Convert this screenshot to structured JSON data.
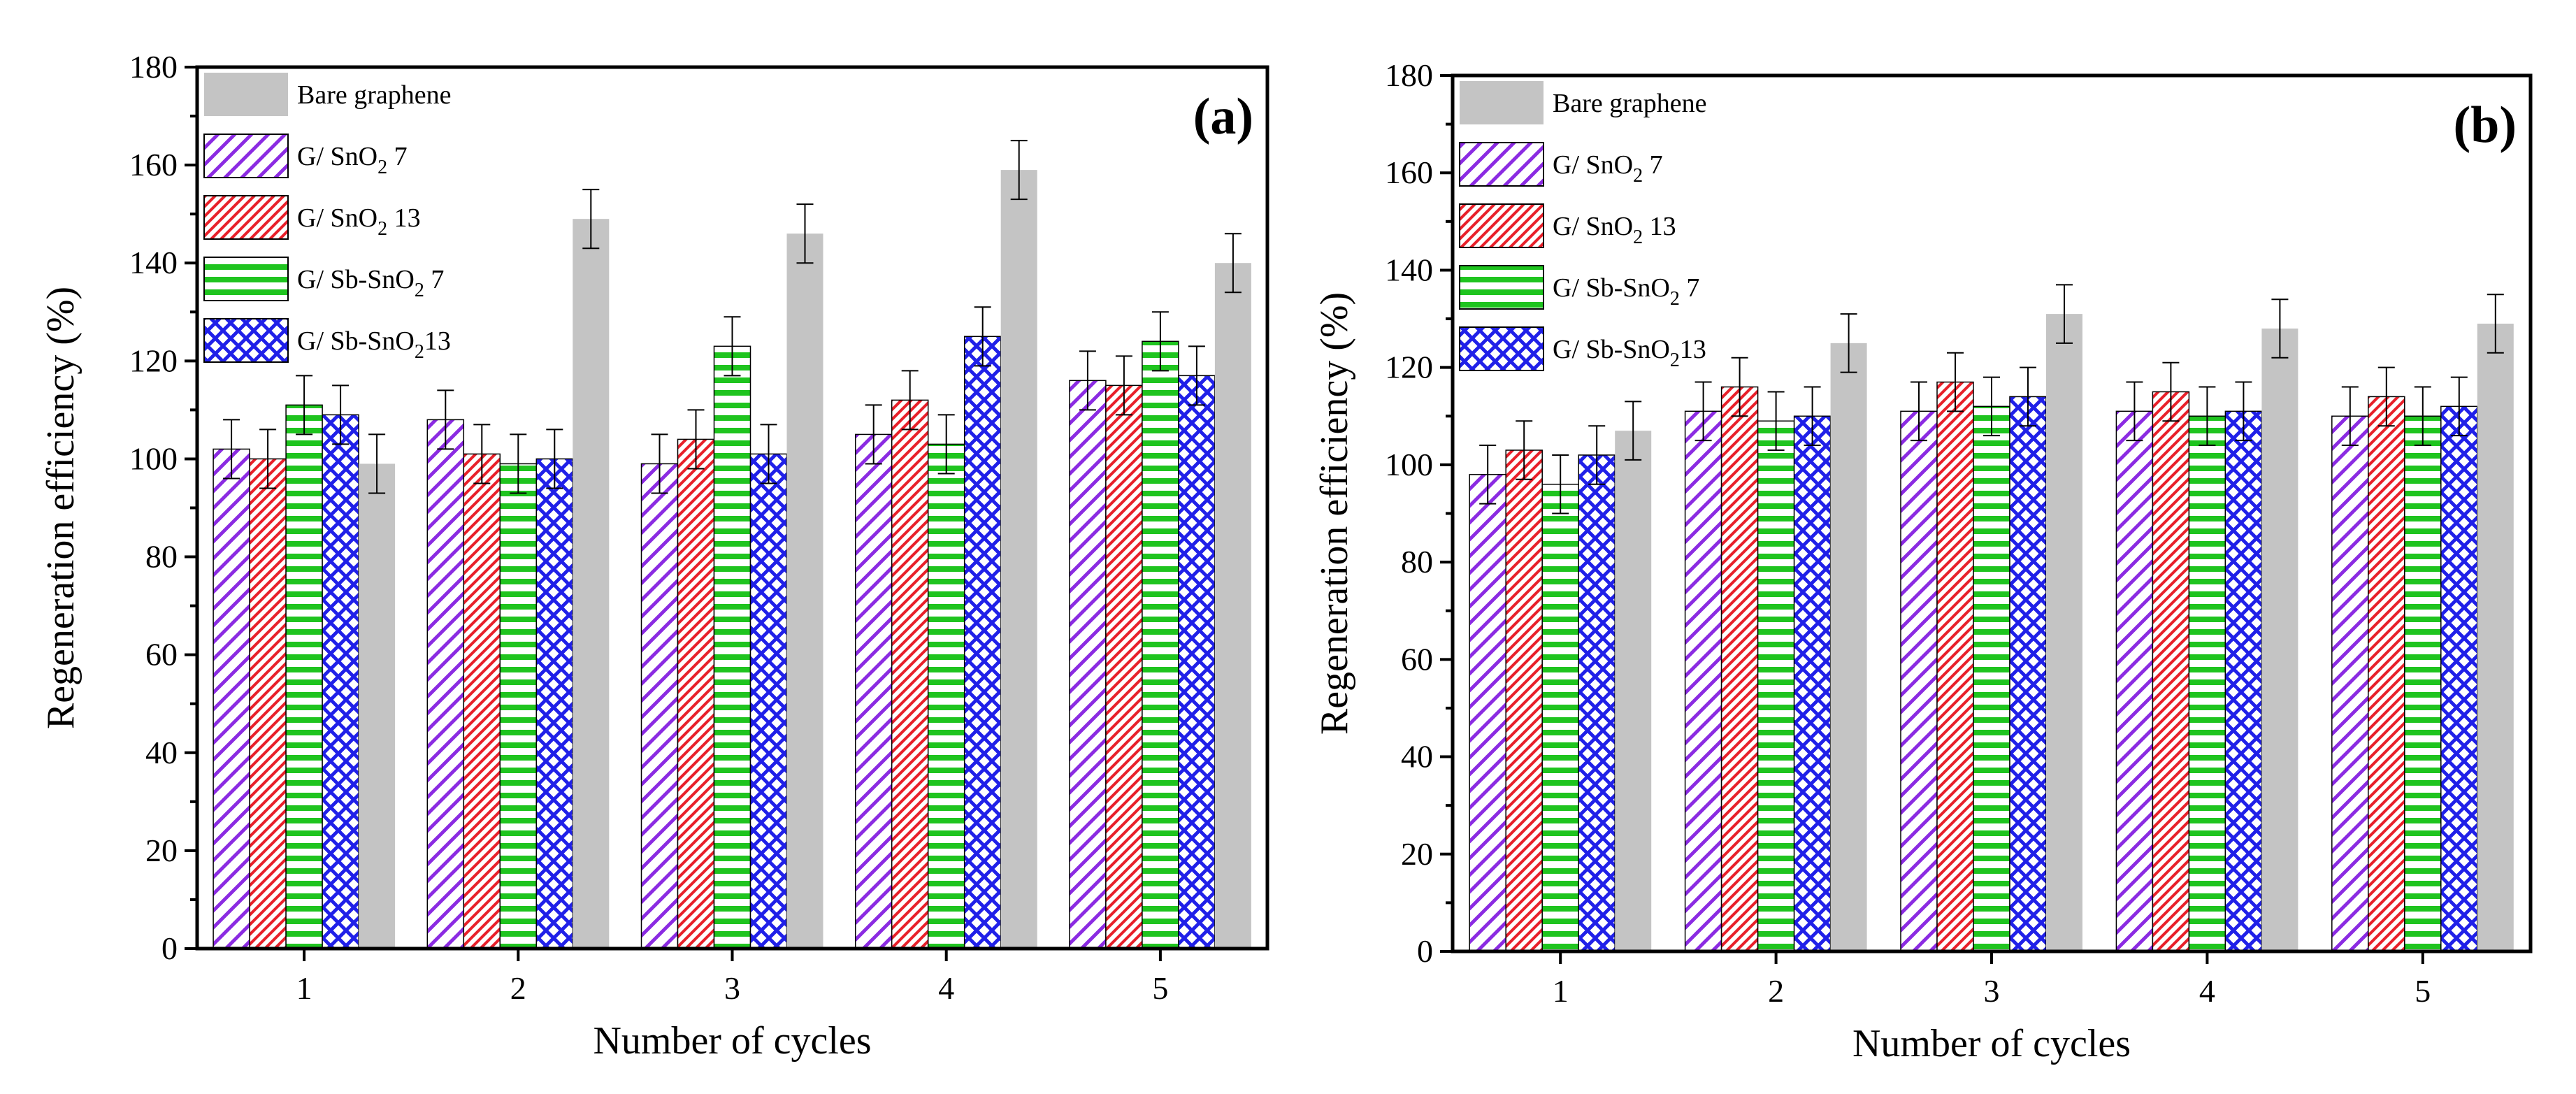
{
  "chart_data": [
    {
      "type": "bar",
      "panel_label": "(a)",
      "xlabel": "Number of cycles",
      "ylabel": "Regeneration efficiency (%)",
      "ylim": [
        0,
        180
      ],
      "yticks": [
        0,
        20,
        40,
        60,
        80,
        100,
        120,
        140,
        160,
        180
      ],
      "categories": [
        "1",
        "2",
        "3",
        "4",
        "5"
      ],
      "legend_position": "top-left",
      "series": [
        {
          "name": "G/ SnO2 7",
          "legend": {
            "pre": "G/ SnO",
            "sub": "2",
            "post": " 7"
          },
          "pattern": "diag-purple",
          "color": "#8B2BE2",
          "values": [
            102,
            108,
            99,
            105,
            116
          ],
          "errors": [
            6,
            6,
            6,
            6,
            6
          ]
        },
        {
          "name": "G/ SnO2 13",
          "legend": {
            "pre": "G/ SnO",
            "sub": "2",
            "post": "  13"
          },
          "pattern": "diag-red",
          "color": "#E8202A",
          "values": [
            100,
            101,
            104,
            112,
            115
          ],
          "errors": [
            6,
            6,
            6,
            6,
            6
          ]
        },
        {
          "name": "G/ Sb-SnO2 7",
          "legend": {
            "pre": "G/ Sb-SnO",
            "sub": "2",
            "post": " 7"
          },
          "pattern": "horiz-green",
          "color": "#1FC41F",
          "values": [
            111,
            99,
            123,
            103,
            124
          ],
          "errors": [
            6,
            6,
            6,
            6,
            6
          ]
        },
        {
          "name": "G/ Sb-SnO2 13",
          "legend": {
            "pre": "G/ Sb-SnO",
            "sub": "2",
            "post": "13"
          },
          "pattern": "cross-blue",
          "color": "#2020E8",
          "values": [
            109,
            100,
            101,
            125,
            117
          ],
          "errors": [
            6,
            6,
            6,
            6,
            6
          ]
        },
        {
          "name": "Bare graphene",
          "legend": {
            "pre": "Bare graphene",
            "sub": "",
            "post": ""
          },
          "pattern": "solid-gray",
          "color": "#c4c4c4",
          "values": [
            99,
            149,
            146,
            159,
            140
          ],
          "errors": [
            6,
            6,
            6,
            6,
            6
          ]
        }
      ]
    },
    {
      "type": "bar",
      "panel_label": "(b)",
      "xlabel": "Number of cycles",
      "ylabel": "Regeneration efficiency (%)",
      "ylim": [
        0,
        180
      ],
      "yticks": [
        0,
        20,
        40,
        60,
        80,
        100,
        120,
        140,
        160,
        180
      ],
      "categories": [
        "1",
        "2",
        "3",
        "4",
        "5"
      ],
      "legend_position": "top-left",
      "series": [
        {
          "name": "G/ SnO2 7",
          "legend": {
            "pre": "G/ SnO",
            "sub": "2",
            "post": " 7"
          },
          "pattern": "diag-purple",
          "color": "#8B2BE2",
          "values": [
            98,
            111,
            111,
            111,
            110
          ],
          "errors": [
            6,
            6,
            6,
            6,
            6
          ]
        },
        {
          "name": "G/ SnO2 13",
          "legend": {
            "pre": "G/ SnO",
            "sub": "2",
            "post": "  13"
          },
          "pattern": "diag-red",
          "color": "#E8202A",
          "values": [
            103,
            116,
            117,
            115,
            114
          ],
          "errors": [
            6,
            6,
            6,
            6,
            6
          ]
        },
        {
          "name": "G/ Sb-SnO2 7",
          "legend": {
            "pre": "G/ Sb-SnO",
            "sub": "2",
            "post": " 7"
          },
          "pattern": "horiz-green",
          "color": "#1FC41F",
          "values": [
            96,
            109,
            112,
            110,
            110
          ],
          "errors": [
            6,
            6,
            6,
            6,
            6
          ]
        },
        {
          "name": "G/ Sb-SnO2 13",
          "legend": {
            "pre": "G/ Sb-SnO",
            "sub": "2",
            "post": "13"
          },
          "pattern": "cross-blue",
          "color": "#2020E8",
          "values": [
            102,
            110,
            114,
            111,
            112
          ],
          "errors": [
            6,
            6,
            6,
            6,
            6
          ]
        },
        {
          "name": "Bare graphene",
          "legend": {
            "pre": "Bare graphene",
            "sub": "",
            "post": ""
          },
          "pattern": "solid-gray",
          "color": "#c4c4c4",
          "values": [
            107,
            125,
            131,
            128,
            129
          ],
          "errors": [
            6,
            6,
            6,
            6,
            6
          ]
        }
      ]
    }
  ]
}
